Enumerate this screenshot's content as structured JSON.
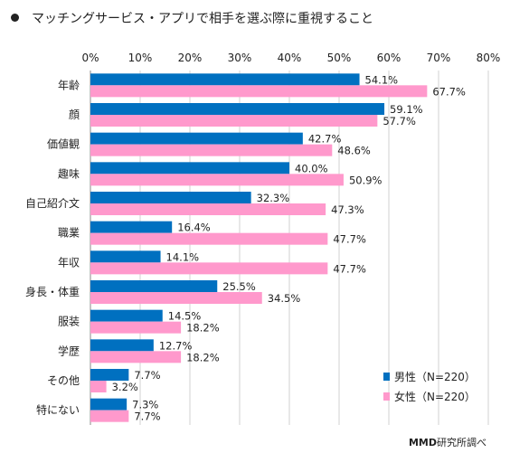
{
  "title": "マッチングサービス・アプリで相手を選ぶ際に重視すること",
  "source": {
    "brand": "MMD",
    "text": "研究所調べ"
  },
  "chart_data": {
    "type": "bar",
    "orientation": "horizontal",
    "title": "マッチングサービス・アプリで相手を選ぶ際に重視すること",
    "xlabel": "",
    "ylabel": "",
    "xlim": [
      0,
      80
    ],
    "x_ticks": [
      "0%",
      "10%",
      "20%",
      "30%",
      "40%",
      "50%",
      "60%",
      "70%",
      "80%"
    ],
    "x_tick_values": [
      0,
      10,
      20,
      30,
      40,
      50,
      60,
      70,
      80
    ],
    "grid": true,
    "legend_position": "bottom-right",
    "categories": [
      "年齢",
      "顔",
      "価値観",
      "趣味",
      "自己紹介文",
      "職業",
      "年収",
      "身長・体重",
      "服装",
      "学歴",
      "その他",
      "特にない"
    ],
    "series": [
      {
        "name": "男性（N=220）",
        "color": "#0070c0",
        "values": [
          54.1,
          59.1,
          42.7,
          40.0,
          32.3,
          16.4,
          14.1,
          25.5,
          14.5,
          12.7,
          7.7,
          7.3
        ],
        "labels": [
          "54.1%",
          "59.1%",
          "42.7%",
          "40.0%",
          "32.3%",
          "16.4%",
          "14.1%",
          "25.5%",
          "14.5%",
          "12.7%",
          "7.7%",
          "7.3%"
        ]
      },
      {
        "name": "女性（N=220）",
        "color": "#ff99cc",
        "values": [
          67.7,
          57.7,
          48.6,
          50.9,
          47.3,
          47.7,
          47.7,
          34.5,
          18.2,
          18.2,
          3.2,
          7.7
        ],
        "labels": [
          "67.7%",
          "57.7%",
          "48.6%",
          "50.9%",
          "47.3%",
          "47.7%",
          "47.7%",
          "34.5%",
          "18.2%",
          "18.2%",
          "3.2%",
          "7.7%"
        ]
      }
    ]
  }
}
